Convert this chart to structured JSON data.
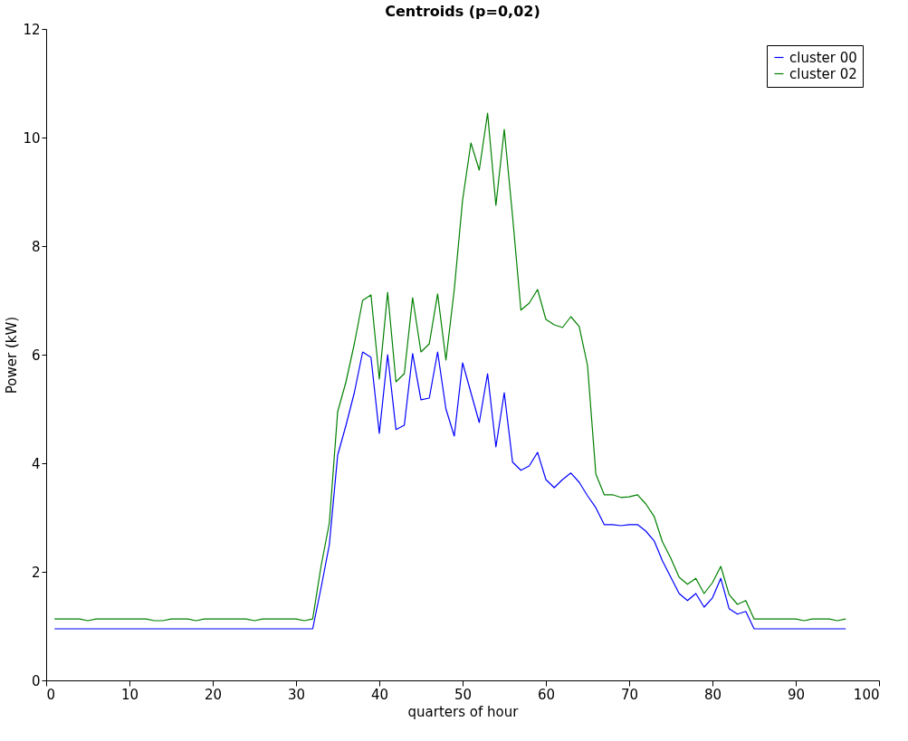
{
  "chart_data": {
    "type": "line",
    "title": "Centroids (p=0,02)",
    "xlabel": "quarters of hour",
    "ylabel": "Power (kW)",
    "x": [
      1,
      2,
      3,
      4,
      5,
      6,
      7,
      8,
      9,
      10,
      11,
      12,
      13,
      14,
      15,
      16,
      17,
      18,
      19,
      20,
      21,
      22,
      23,
      24,
      25,
      26,
      27,
      28,
      29,
      30,
      31,
      32,
      33,
      34,
      35,
      36,
      37,
      38,
      39,
      40,
      41,
      42,
      43,
      44,
      45,
      46,
      47,
      48,
      49,
      50,
      51,
      52,
      53,
      54,
      55,
      56,
      57,
      58,
      59,
      60,
      61,
      62,
      63,
      64,
      65,
      66,
      67,
      68,
      69,
      70,
      71,
      72,
      73,
      74,
      75,
      76,
      77,
      78,
      79,
      80,
      81,
      82,
      83,
      84,
      85,
      86,
      87,
      88,
      89,
      90,
      91,
      92,
      93,
      94,
      95,
      96
    ],
    "series": [
      {
        "name": "cluster 00",
        "color": "#0000ff",
        "values": [
          0.95,
          0.95,
          0.95,
          0.95,
          0.95,
          0.95,
          0.95,
          0.95,
          0.95,
          0.95,
          0.95,
          0.95,
          0.95,
          0.95,
          0.95,
          0.95,
          0.95,
          0.95,
          0.95,
          0.95,
          0.95,
          0.95,
          0.95,
          0.95,
          0.95,
          0.95,
          0.95,
          0.95,
          0.95,
          0.95,
          0.95,
          0.95,
          1.7,
          2.5,
          4.15,
          4.7,
          5.3,
          6.05,
          5.95,
          4.55,
          6.0,
          4.62,
          4.7,
          6.02,
          5.17,
          5.2,
          6.05,
          5.0,
          4.5,
          5.85,
          5.3,
          4.75,
          5.65,
          4.3,
          5.3,
          4.02,
          3.87,
          3.95,
          4.2,
          3.7,
          3.55,
          3.7,
          3.82,
          3.65,
          3.4,
          3.18,
          2.87,
          2.87,
          2.85,
          2.87,
          2.87,
          2.75,
          2.57,
          2.2,
          1.9,
          1.6,
          1.47,
          1.6,
          1.35,
          1.52,
          1.88,
          1.32,
          1.22,
          1.27,
          0.95,
          0.95,
          0.95,
          0.95,
          0.95,
          0.95,
          0.95,
          0.95,
          0.95,
          0.95,
          0.95,
          0.95
        ]
      },
      {
        "name": "cluster 02",
        "color": "#008000",
        "values": [
          1.13,
          1.13,
          1.13,
          1.13,
          1.1,
          1.13,
          1.13,
          1.13,
          1.13,
          1.13,
          1.13,
          1.13,
          1.1,
          1.1,
          1.13,
          1.13,
          1.13,
          1.1,
          1.13,
          1.13,
          1.13,
          1.13,
          1.13,
          1.13,
          1.1,
          1.13,
          1.13,
          1.13,
          1.13,
          1.13,
          1.1,
          1.13,
          2.1,
          2.9,
          4.95,
          5.5,
          6.2,
          7.0,
          7.1,
          5.55,
          7.15,
          5.5,
          5.65,
          7.05,
          6.05,
          6.2,
          7.12,
          5.9,
          7.2,
          8.85,
          9.9,
          9.4,
          10.45,
          8.75,
          10.15,
          8.55,
          6.82,
          6.95,
          7.2,
          6.65,
          6.55,
          6.5,
          6.7,
          6.52,
          5.8,
          3.8,
          3.42,
          3.42,
          3.37,
          3.38,
          3.42,
          3.25,
          3.02,
          2.55,
          2.25,
          1.9,
          1.77,
          1.88,
          1.6,
          1.8,
          2.1,
          1.58,
          1.4,
          1.47,
          1.13,
          1.13,
          1.13,
          1.13,
          1.13,
          1.13,
          1.1,
          1.13,
          1.13,
          1.13,
          1.1,
          1.13
        ]
      }
    ],
    "xlim": [
      0,
      100
    ],
    "xticks": [
      0,
      10,
      20,
      30,
      40,
      50,
      60,
      70,
      80,
      90,
      100
    ],
    "ylim": [
      0,
      12
    ],
    "yticks": [
      0,
      2,
      4,
      6,
      8,
      10,
      12
    ],
    "grid": false,
    "legend": "top right",
    "marker": "none",
    "line_style": "solid"
  }
}
